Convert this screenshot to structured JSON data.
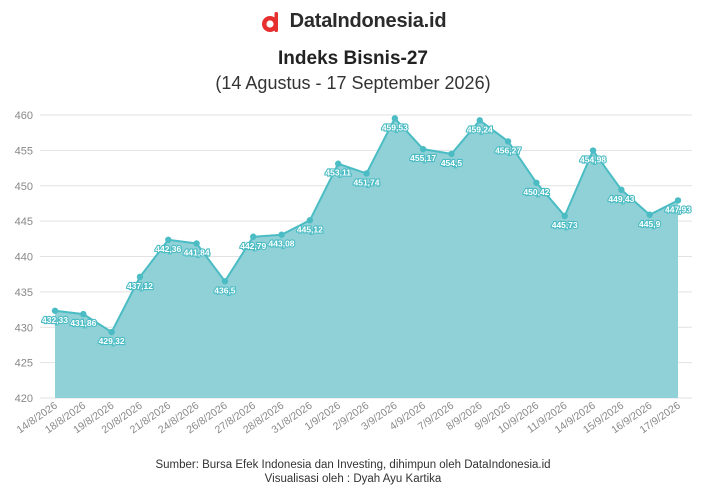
{
  "brand": {
    "name": "DataIndonesia.id",
    "logo_icon": "dataindonesia-logo-icon",
    "logo_color": "#e63030"
  },
  "colors": {
    "area_fill": "#8fd1d6",
    "line": "#4bbcc4",
    "grid": "#e2e2e2",
    "label_stroke": "#4bbcc4"
  },
  "chart_data": {
    "type": "area",
    "title": "Indeks Bisnis-27",
    "subtitle": "(14 Agustus - 17 September 2026)",
    "xlabel": "",
    "ylabel": "",
    "ylim": [
      420,
      460
    ],
    "yticks": [
      420,
      425,
      430,
      435,
      440,
      445,
      450,
      455,
      460
    ],
    "grid": true,
    "legend": "none",
    "categories": [
      "14/8/2026",
      "18/8/2026",
      "19/8/2026",
      "20/8/2026",
      "21/8/2026",
      "24/8/2026",
      "26/8/2026",
      "27/8/2026",
      "28/8/2026",
      "31/8/2026",
      "1/9/2026",
      "2/9/2026",
      "3/9/2026",
      "4/9/2026",
      "7/9/2026",
      "8/9/2026",
      "9/9/2026",
      "10/9/2026",
      "11/9/2026",
      "14/9/2026",
      "15/9/2026",
      "16/9/2026",
      "17/9/2026"
    ],
    "values": [
      432.33,
      431.86,
      429.32,
      437.12,
      442.36,
      441.84,
      436.5,
      442.79,
      443.08,
      445.12,
      453.11,
      451.74,
      459.53,
      455.17,
      454.5,
      459.24,
      456.27,
      450.42,
      445.73,
      454.98,
      449.43,
      445.9,
      447.93
    ],
    "data_labels": [
      "432,33",
      "431,86",
      "429,32",
      "437,12",
      "442,36",
      "441,84",
      "436,5",
      "442,79",
      "443,08",
      "445,12",
      "453,11",
      "451,74",
      "459,53",
      "455,17",
      "454,5",
      "459,24",
      "456,27",
      "450,42",
      "445,73",
      "454,98",
      "449,43",
      "445,9",
      "447,93"
    ]
  },
  "footer": {
    "source": "Sumber: Bursa Efek Indonesia dan Investing, dihimpun oleh DataIndonesia.id",
    "visualization": "Visualisasi oleh : Dyah Ayu Kartika"
  }
}
